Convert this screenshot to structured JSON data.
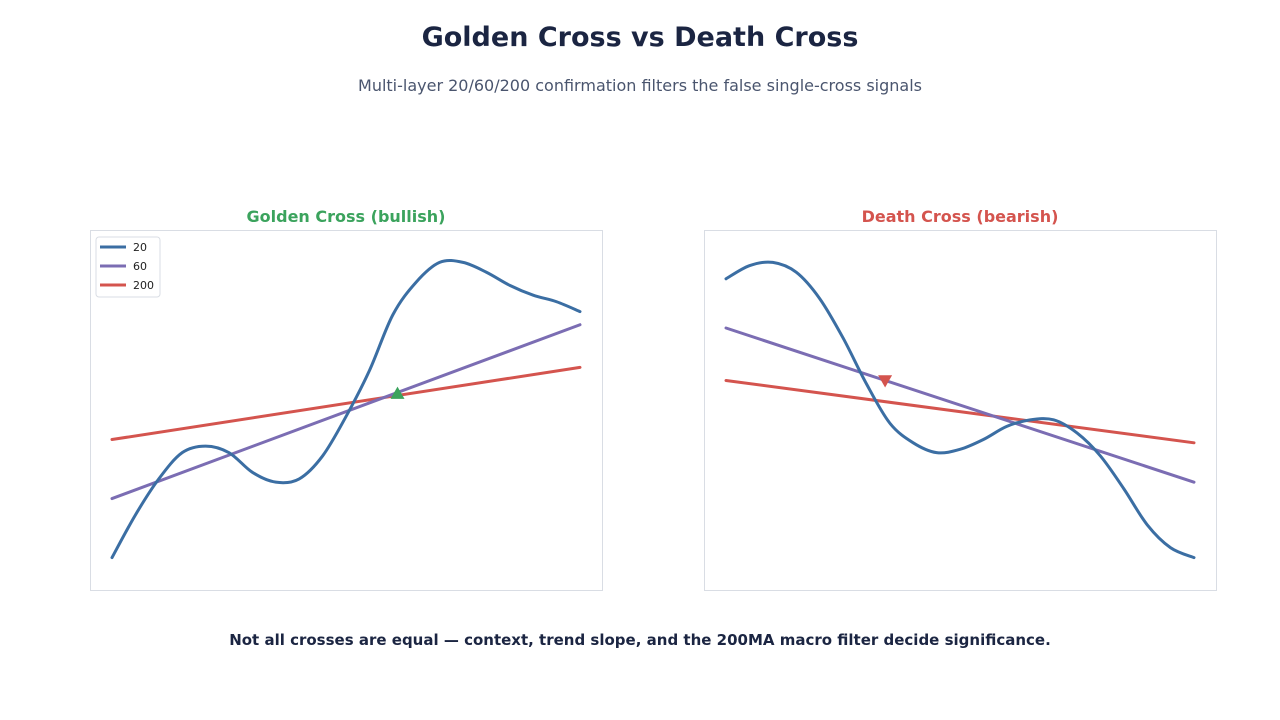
{
  "header": {
    "title": "Golden Cross vs Death Cross",
    "subtitle": "Multi-layer 20/60/200 confirmation filters the false single-cross signals"
  },
  "footer": {
    "note": "Not all crosses are equal — context, trend slope, and the 200MA macro filter decide significance."
  },
  "colors": {
    "ma20": "#3b6ea3",
    "ma60": "#7b6db3",
    "ma200": "#d4544e",
    "golden": "#3ba35d",
    "death": "#d4544e",
    "frame": "#d9dde4"
  },
  "chart_data": [
    {
      "type": "line",
      "title": "Golden Cross (bullish)",
      "xlim": [
        0,
        100
      ],
      "ylim": [
        0,
        100
      ],
      "legend_position": "top-left",
      "grid": false,
      "series": [
        {
          "name": "20",
          "x": [
            0,
            5,
            10,
            15,
            20,
            25,
            30,
            35,
            40,
            45,
            50,
            55,
            60,
            65,
            70,
            75,
            80,
            85,
            90,
            95,
            100
          ],
          "y": [
            5,
            18,
            29,
            37,
            39,
            37,
            31,
            28,
            29,
            36,
            48,
            62,
            79,
            89,
            95,
            95,
            92,
            88,
            85,
            83,
            80
          ]
        },
        {
          "name": "60",
          "x": [
            0,
            100
          ],
          "y": [
            23,
            76
          ]
        },
        {
          "name": "200",
          "x": [
            0,
            100
          ],
          "y": [
            41,
            63
          ]
        }
      ],
      "marker": {
        "shape": "triangle-up",
        "x": 61,
        "y": 55
      }
    },
    {
      "type": "line",
      "title": "Death Cross (bearish)",
      "xlim": [
        0,
        100
      ],
      "ylim": [
        0,
        100
      ],
      "grid": false,
      "series": [
        {
          "name": "20",
          "x": [
            0,
            5,
            10,
            15,
            20,
            25,
            30,
            35,
            40,
            45,
            50,
            55,
            60,
            65,
            70,
            75,
            80,
            85,
            90,
            95,
            100
          ],
          "y": [
            90,
            94,
            95,
            92,
            84,
            72,
            58,
            46,
            40,
            37,
            38,
            41,
            45,
            47,
            47,
            43,
            36,
            26,
            15,
            8,
            5
          ]
        },
        {
          "name": "60",
          "x": [
            0,
            100
          ],
          "y": [
            75,
            28
          ]
        },
        {
          "name": "200",
          "x": [
            0,
            100
          ],
          "y": [
            59,
            40
          ]
        }
      ],
      "marker": {
        "shape": "triangle-down",
        "x": 34,
        "y": 59
      }
    }
  ]
}
